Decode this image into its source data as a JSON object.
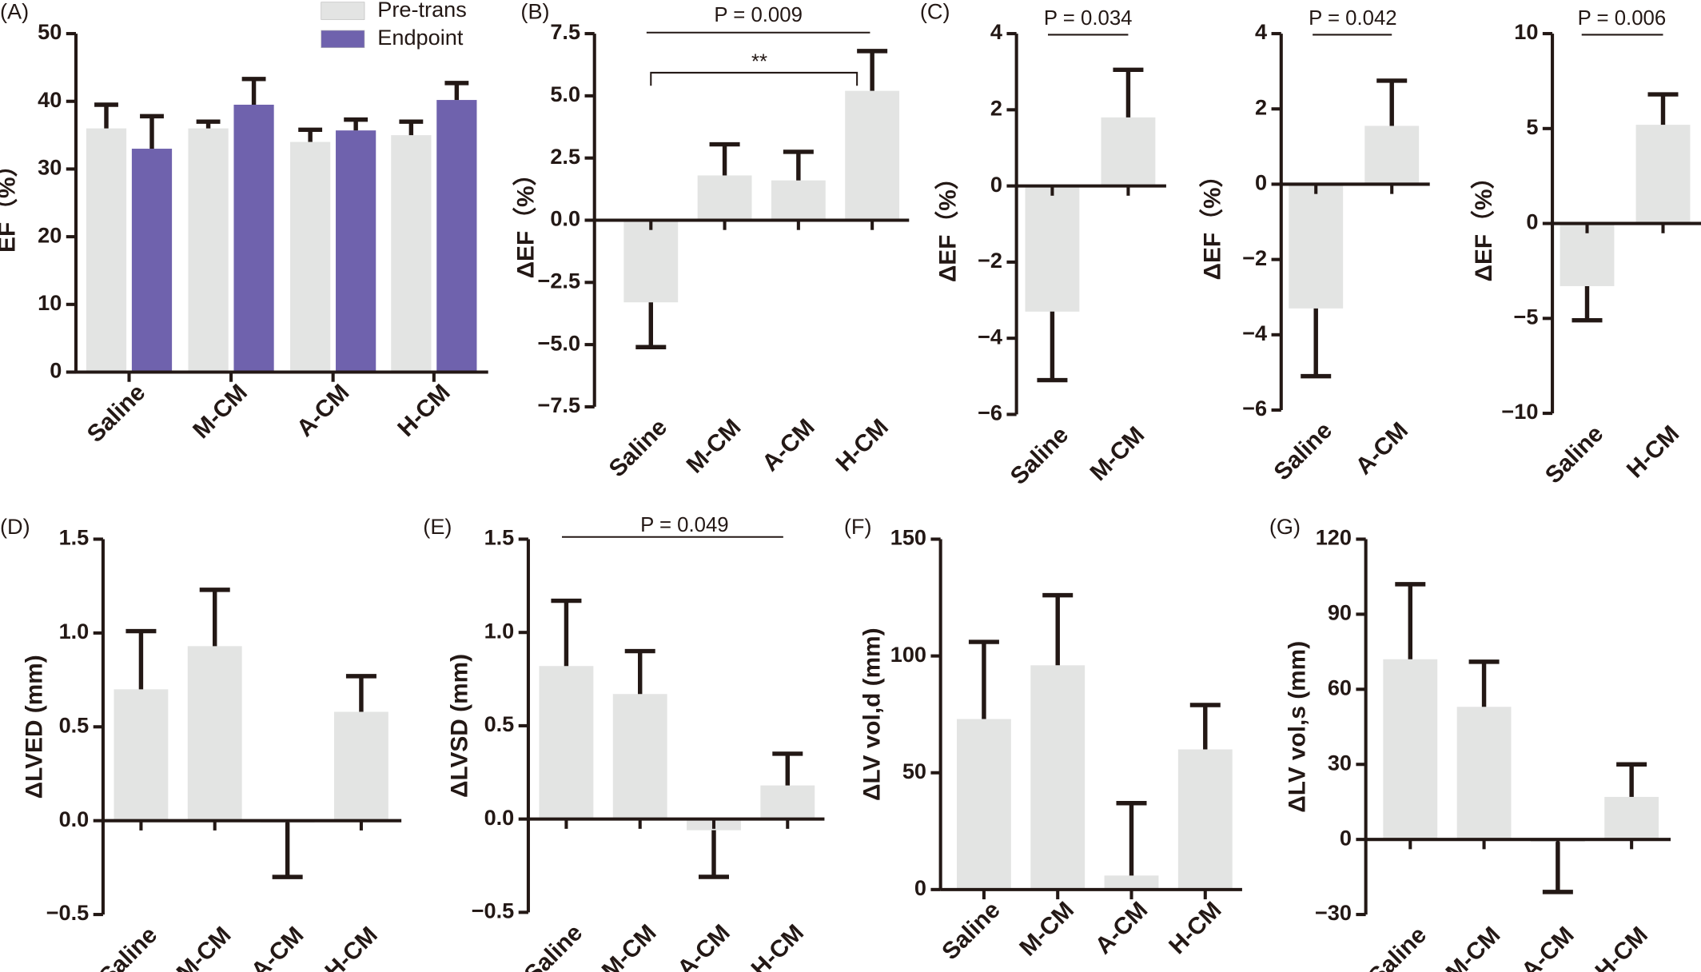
{
  "chart_data": [
    {
      "type": "bar",
      "panel_label": "(A)",
      "ylabel": "EF（%）",
      "categories": [
        "Saline",
        "M-CM",
        "A-CM",
        "H-CM"
      ],
      "series": [
        {
          "name": "Pre-trans",
          "color": "#e3e4e3",
          "values": [
            36,
            36,
            34,
            35
          ],
          "errors": [
            3.5,
            1,
            1.8,
            2
          ]
        },
        {
          "name": "Endpoint",
          "color": "#6f62ad",
          "values": [
            33,
            39.5,
            35.7,
            40.2
          ],
          "errors": [
            4.8,
            3.8,
            1.6,
            2.5
          ]
        }
      ],
      "ylim": [
        0,
        50
      ],
      "yticks": [
        0,
        10,
        20,
        30,
        40,
        50
      ],
      "legend": "upper right",
      "error_color": "#231815"
    },
    {
      "type": "bar",
      "panel_label": "(B)",
      "ylabel": "ΔEF（%）",
      "categories": [
        "Saline",
        "M-CM",
        "A-CM",
        "H-CM"
      ],
      "series": [
        {
          "color": "#e3e4e3",
          "values": [
            -3.3,
            1.8,
            1.6,
            5.2
          ],
          "errors": [
            1.8,
            1.25,
            1.15,
            1.6
          ]
        }
      ],
      "ylim": [
        -7.5,
        7.5
      ],
      "yticks": [
        {
          "value": -7.5,
          "label": "−7.5"
        },
        {
          "value": -5,
          "label": "−5.0"
        },
        {
          "value": -2.5,
          "label": "−2.5"
        },
        {
          "value": 0,
          "label": "0.0"
        },
        2.5,
        {
          "value": 5,
          "label": "5.0"
        },
        7.5
      ],
      "annotations": [
        "P = 0.009",
        "**"
      ],
      "error_color": "#231815"
    },
    {
      "type": "bar",
      "panel_label": "(C)",
      "ylabel": "ΔEF（%）",
      "categories": [
        "Saline",
        "M-CM"
      ],
      "series": [
        {
          "color": "#e3e4e3",
          "values": [
            -3.3,
            1.8
          ],
          "errors": [
            1.8,
            1.25
          ]
        }
      ],
      "ylim": [
        -6,
        4
      ],
      "yticks": [
        {
          "value": -6,
          "label": "−6"
        },
        {
          "value": -4,
          "label": "−4"
        },
        {
          "value": -2,
          "label": "−2"
        },
        0,
        2,
        4
      ],
      "annotations": [
        "P = 0.034"
      ],
      "error_color": "#231815"
    },
    {
      "type": "bar",
      "ylabel": "ΔEF（%）",
      "categories": [
        "Saline",
        "A-CM"
      ],
      "series": [
        {
          "color": "#e3e4e3",
          "values": [
            -3.3,
            1.55
          ],
          "errors": [
            1.8,
            1.2
          ]
        }
      ],
      "ylim": [
        -6,
        4
      ],
      "yticks": [
        {
          "value": -6,
          "label": "−6"
        },
        {
          "value": -4,
          "label": "−4"
        },
        {
          "value": -2,
          "label": "−2"
        },
        0,
        2,
        4
      ],
      "annotations": [
        "P = 0.042"
      ],
      "error_color": "#231815"
    },
    {
      "type": "bar",
      "ylabel": "ΔEF（%）",
      "categories": [
        "Saline",
        "H-CM"
      ],
      "series": [
        {
          "color": "#e3e4e3",
          "values": [
            -3.3,
            5.2
          ],
          "errors": [
            1.8,
            1.6
          ]
        }
      ],
      "ylim": [
        -10,
        10
      ],
      "yticks": [
        {
          "value": -10,
          "label": "−10"
        },
        {
          "value": -5,
          "label": "−5"
        },
        0,
        5,
        10
      ],
      "annotations": [
        "P = 0.006"
      ],
      "error_color": "#231815"
    },
    {
      "type": "bar",
      "panel_label": "(D)",
      "ylabel": "ΔLVED (mm)",
      "categories": [
        "Saline",
        "M-CM",
        "A-CM",
        "H-CM"
      ],
      "series": [
        {
          "color": "#e3e4e3",
          "values": [
            0.7,
            0.93,
            -0.01,
            0.58
          ],
          "errors": [
            0.31,
            0.3,
            0.29,
            0.19
          ]
        }
      ],
      "ylim": [
        -0.5,
        1.5
      ],
      "yticks": [
        {
          "value": -0.5,
          "label": "−0.5"
        },
        {
          "value": 0,
          "label": "0.0"
        },
        0.5,
        {
          "value": 1,
          "label": "1.0"
        },
        1.5
      ],
      "error_color": "#231815"
    },
    {
      "type": "bar",
      "panel_label": "(E)",
      "ylabel": "ΔLVSD (mm)",
      "categories": [
        "Saline",
        "M-CM",
        "A-CM",
        "H-CM"
      ],
      "series": [
        {
          "color": "#e3e4e3",
          "values": [
            0.82,
            0.67,
            -0.06,
            0.18
          ],
          "errors": [
            0.35,
            0.23,
            0.25,
            0.17
          ]
        }
      ],
      "ylim": [
        -0.5,
        1.5
      ],
      "yticks": [
        {
          "value": -0.5,
          "label": "−0.5"
        },
        {
          "value": 0,
          "label": "0.0"
        },
        0.5,
        {
          "value": 1,
          "label": "1.0"
        },
        1.5
      ],
      "annotations": [
        "P = 0.049"
      ],
      "error_color": "#231815"
    },
    {
      "type": "bar",
      "panel_label": "(F)",
      "ylabel": "ΔLV vol,d (mm)",
      "categories": [
        "Saline",
        "M-CM",
        "A-CM",
        "H-CM"
      ],
      "series": [
        {
          "color": "#e3e4e3",
          "values": [
            73,
            96,
            6,
            60
          ],
          "errors": [
            33,
            30,
            31,
            19
          ]
        }
      ],
      "ylim": [
        0,
        150
      ],
      "yticks": [
        0,
        50,
        100,
        150
      ],
      "error_color": "#231815"
    },
    {
      "type": "bar",
      "panel_label": "(G)",
      "ylabel": "ΔLV vol,s (mm)",
      "categories": [
        "Saline",
        "M-CM",
        "A-CM",
        "H-CM"
      ],
      "series": [
        {
          "color": "#e3e4e3",
          "values": [
            72,
            53,
            -1,
            17
          ],
          "errors": [
            30,
            18,
            20,
            13
          ]
        }
      ],
      "ylim": [
        -30,
        120
      ],
      "yticks": [
        {
          "value": -30,
          "label": "−30"
        },
        0,
        30,
        60,
        90,
        120
      ],
      "error_color": "#231815"
    }
  ]
}
